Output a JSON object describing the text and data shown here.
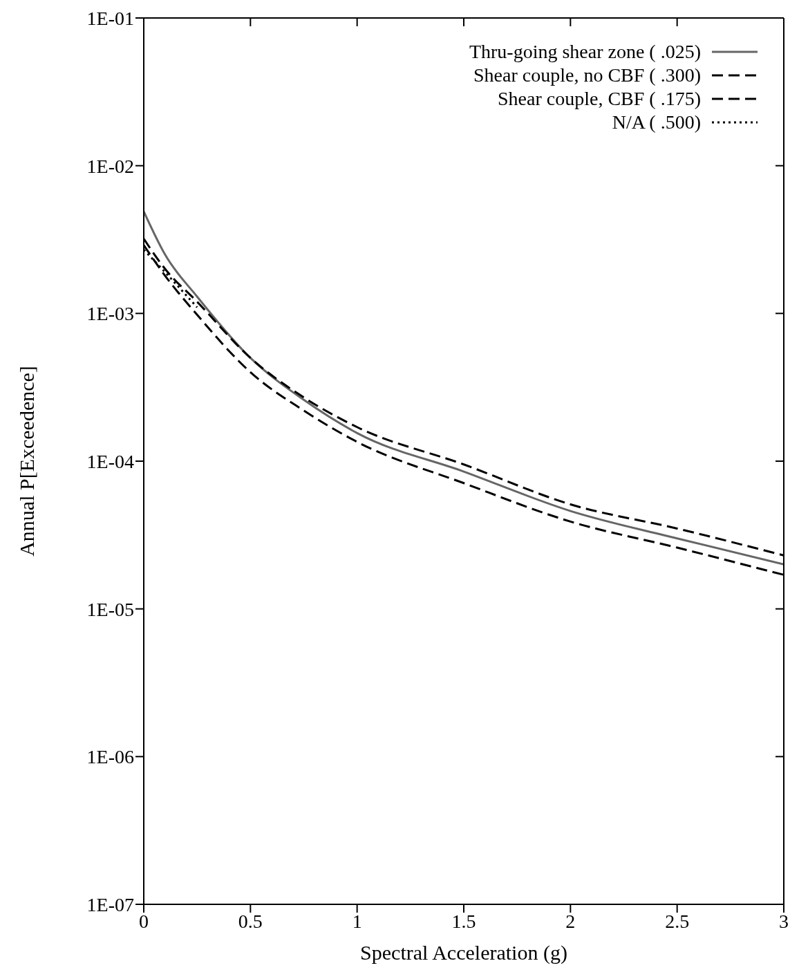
{
  "chart_data": {
    "type": "line",
    "xlabel": "Spectral Acceleration (g)",
    "ylabel": "Annual P[Exceedence]",
    "x": [
      0,
      0.1,
      0.25,
      0.5,
      0.75,
      1,
      1.5,
      2,
      2.5,
      3
    ],
    "series": [
      {
        "name": "Thru-going shear zone ( .025)",
        "color": "#666666",
        "line_style": "solid",
        "values": [
          0.0049,
          0.0025,
          0.0013,
          0.0005,
          0.00026,
          0.000155,
          8.5e-05,
          4.6e-05,
          3e-05,
          2e-05
        ]
      },
      {
        "name": "Shear couple, no CBF ( .300)",
        "color": "#000000",
        "line_style": "dashed",
        "values": [
          0.0032,
          0.002,
          0.0012,
          0.0005,
          0.00027,
          0.00017,
          9.5e-05,
          5.1e-05,
          3.5e-05,
          2.3e-05
        ]
      },
      {
        "name": "Shear couple, CBF ( .175)",
        "color": "#000000",
        "line_style": "dashed",
        "values": [
          0.0029,
          0.0018,
          0.00098,
          0.0004,
          0.00022,
          0.000135,
          7.1e-05,
          3.9e-05,
          2.6e-05,
          1.7e-05
        ]
      },
      {
        "name": "N/A ( .500)",
        "color": "#000000",
        "line_style": "dotted",
        "values": [
          0.0027,
          0.0019,
          0.0011,
          null,
          null,
          null,
          null,
          null,
          null,
          null
        ]
      }
    ],
    "xlim": [
      0,
      3
    ],
    "xticks": [
      0,
      0.5,
      1,
      1.5,
      2,
      2.5,
      3
    ],
    "ylim": [
      1e-07,
      0.1
    ],
    "yticks": [
      {
        "value": 1e-07,
        "label": "1E-07"
      },
      {
        "value": 1e-06,
        "label": "1E-06"
      },
      {
        "value": 1e-05,
        "label": "1E-05"
      },
      {
        "value": 0.0001,
        "label": "1E-04"
      },
      {
        "value": 0.001,
        "label": "1E-03"
      },
      {
        "value": 0.01,
        "label": "1E-02"
      },
      {
        "value": 0.1,
        "label": "1E-01"
      }
    ],
    "log": "y",
    "legend": "top right",
    "marker": "none"
  }
}
